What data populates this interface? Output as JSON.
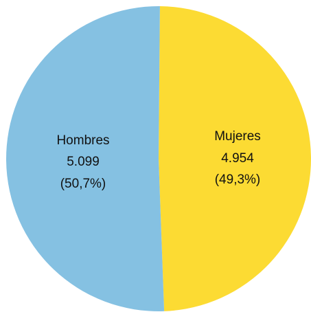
{
  "chart_data": {
    "type": "pie",
    "title": "",
    "slices": [
      {
        "label": "Hombres",
        "value": 5099,
        "value_text": "5.099",
        "percent": 50.7,
        "percent_text": "(50,7%)",
        "color": "#85C1E2"
      },
      {
        "label": "Mujeres",
        "value": 4954,
        "value_text": "4.954",
        "percent": 49.3,
        "percent_text": "(49,3%)",
        "color": "#FCDB33"
      }
    ]
  }
}
